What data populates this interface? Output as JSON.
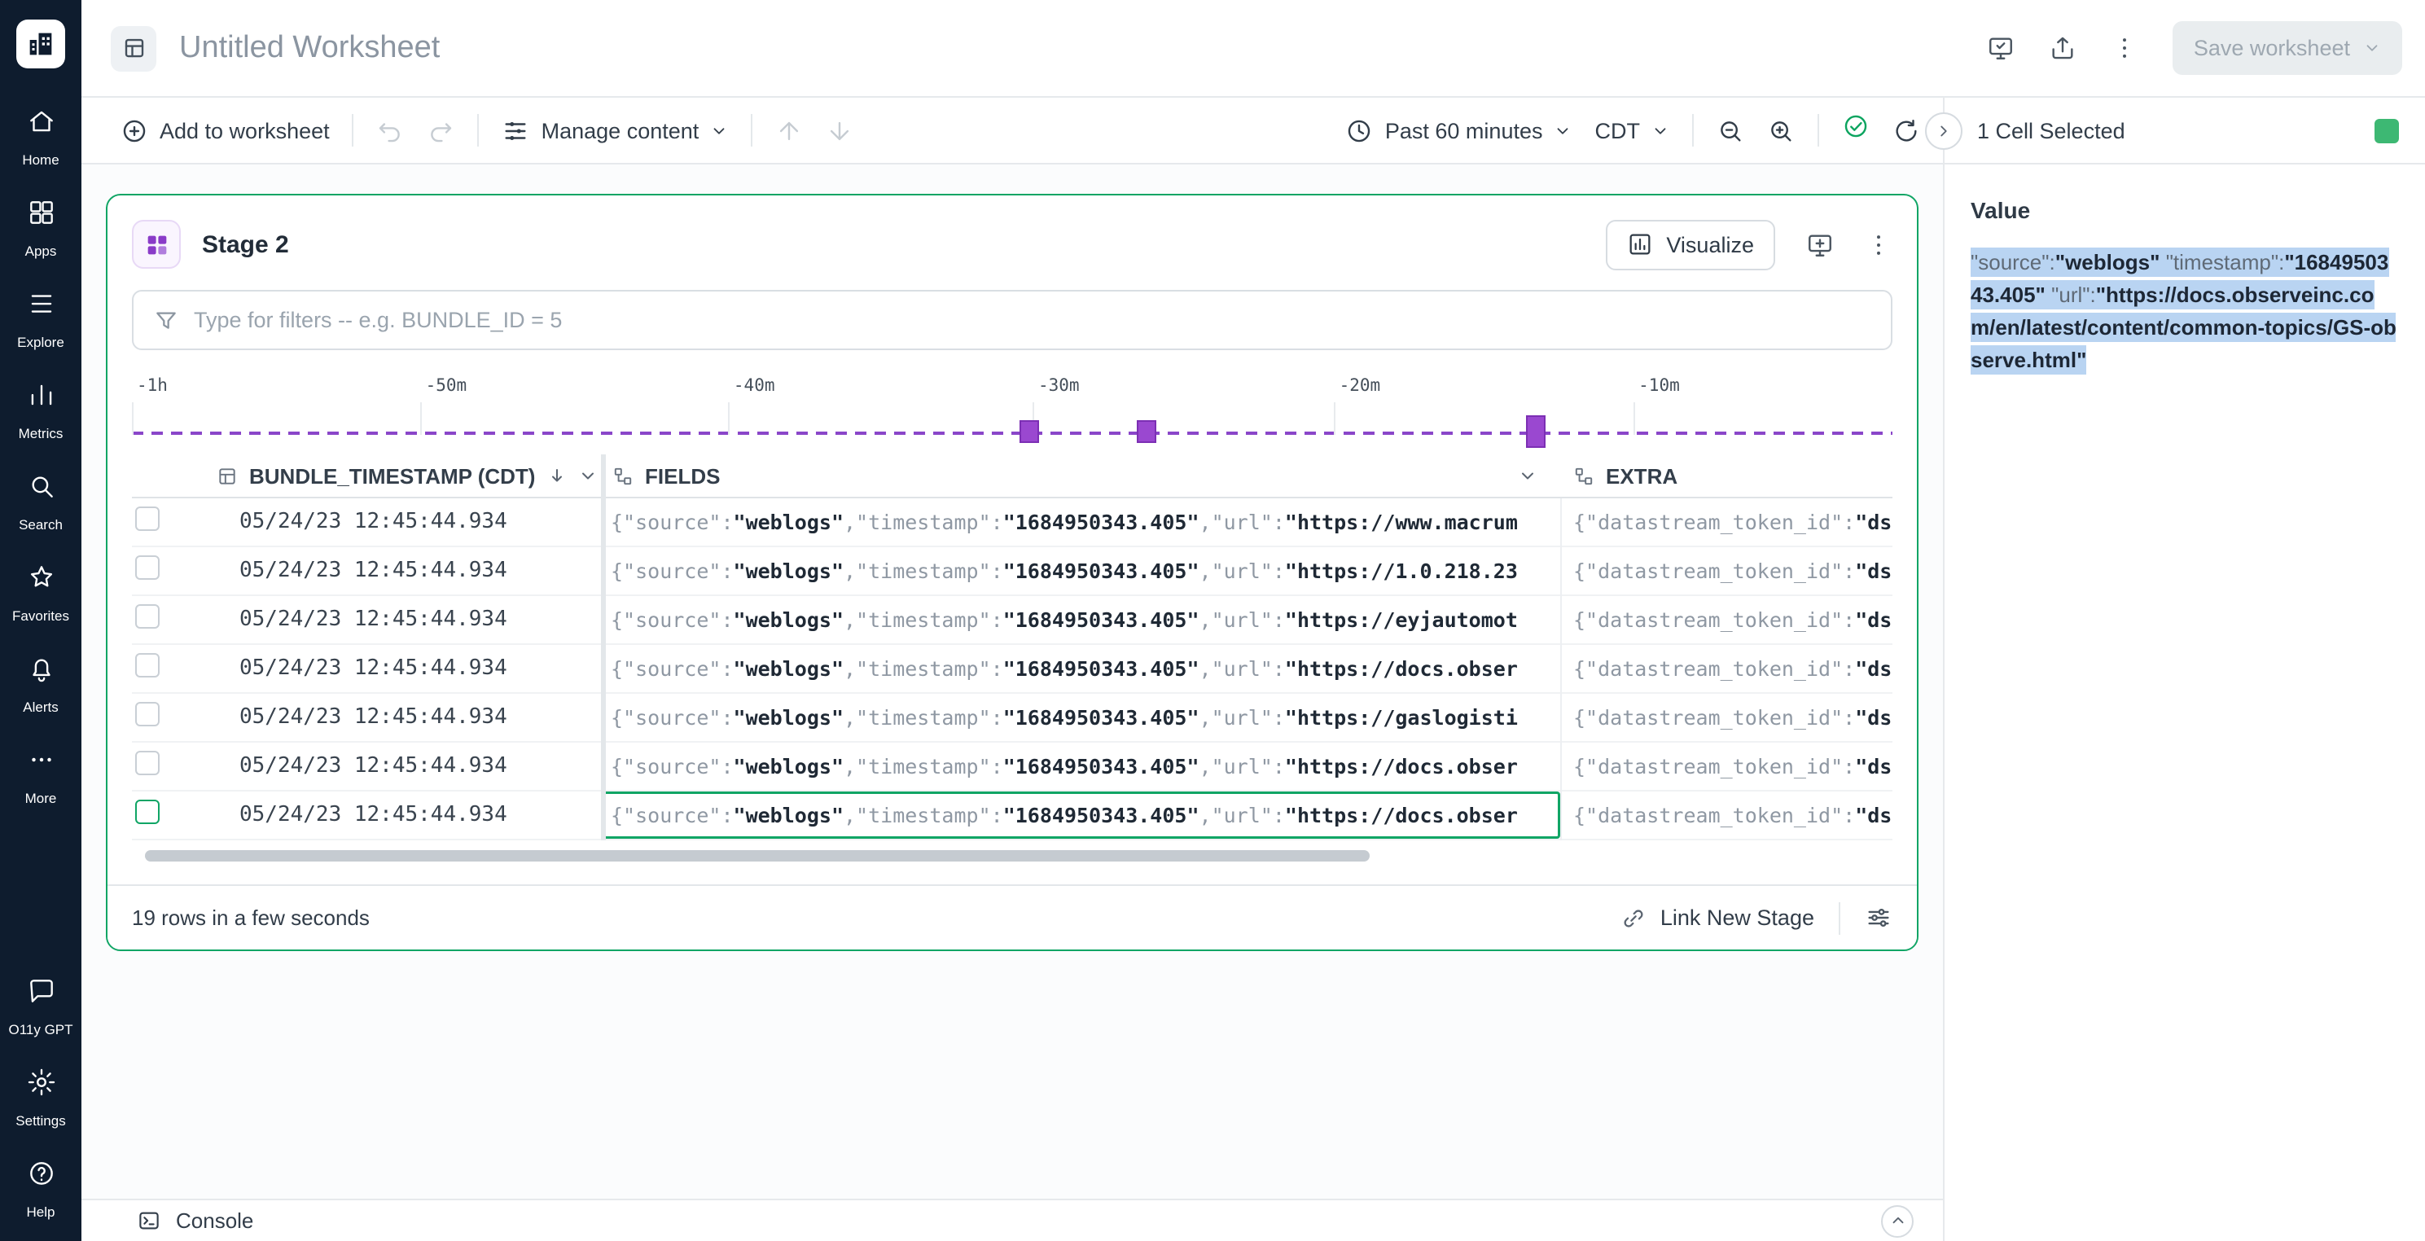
{
  "topbar": {
    "title": "Untitled Worksheet",
    "save_label": "Save worksheet"
  },
  "sidebar": {
    "items": [
      {
        "id": "home",
        "label": "Home"
      },
      {
        "id": "apps",
        "label": "Apps"
      },
      {
        "id": "explore",
        "label": "Explore"
      },
      {
        "id": "metrics",
        "label": "Metrics"
      },
      {
        "id": "search",
        "label": "Search"
      },
      {
        "id": "favorites",
        "label": "Favorites"
      },
      {
        "id": "alerts",
        "label": "Alerts"
      },
      {
        "id": "more",
        "label": "More"
      }
    ],
    "bottom_items": [
      {
        "id": "o11y-gpt",
        "label": "O11y GPT"
      },
      {
        "id": "settings",
        "label": "Settings"
      },
      {
        "id": "help",
        "label": "Help"
      }
    ]
  },
  "toolbar": {
    "add_label": "Add to worksheet",
    "manage_label": "Manage content",
    "time_range": "Past 60 minutes",
    "timezone": "CDT"
  },
  "panel": {
    "header": "1 Cell Selected",
    "value_label": "Value",
    "value_segments": [
      {
        "text": "\"source\":",
        "bold": false
      },
      {
        "text": "\"weblogs\"",
        "bold": true
      },
      {
        "text": " ",
        "bold": false
      },
      {
        "text": "\"timestamp\":",
        "bold": false
      },
      {
        "text": "\"1684950343.405\"",
        "bold": true
      },
      {
        "text": " ",
        "bold": false
      },
      {
        "text": "\"url\":",
        "bold": false
      },
      {
        "text": "\"https://docs.observeinc.com/en/latest/content/common-topics/GS-observe.html\"",
        "bold": true
      }
    ]
  },
  "stage": {
    "title": "Stage 2",
    "visualize_label": "Visualize",
    "filter_placeholder": "Type for filters -- e.g. BUNDLE_ID = 5",
    "status": "19 rows in a few seconds",
    "link_label": "Link New Stage"
  },
  "timeline": {
    "ticks": [
      {
        "label": "-1h",
        "pct": 0
      },
      {
        "label": "-50m",
        "pct": 16.4
      },
      {
        "label": "-40m",
        "pct": 33.9
      },
      {
        "label": "-30m",
        "pct": 51.2
      },
      {
        "label": "-20m",
        "pct": 68.3
      },
      {
        "label": "-10m",
        "pct": 85.3
      }
    ],
    "bars": [
      {
        "pct": 50.4,
        "h": 14
      },
      {
        "pct": 57.1,
        "h": 14
      },
      {
        "pct": 79.2,
        "h": 20
      }
    ]
  },
  "table": {
    "headers": {
      "timestamp": "BUNDLE_TIMESTAMP (CDT)",
      "fields": "FIELDS",
      "extra": "EXTRA"
    },
    "rows": [
      {
        "ts": "05/24/23 12:45:44.934",
        "source": "weblogs",
        "timestamp": "1684950343.405",
        "url": "https://www.macrum",
        "extra_key": "datastream_token_id",
        "extra_val": "ds",
        "selected": false
      },
      {
        "ts": "05/24/23 12:45:44.934",
        "source": "weblogs",
        "timestamp": "1684950343.405",
        "url": "https://1.0.218.23",
        "extra_key": "datastream_token_id",
        "extra_val": "ds",
        "selected": false
      },
      {
        "ts": "05/24/23 12:45:44.934",
        "source": "weblogs",
        "timestamp": "1684950343.405",
        "url": "https://eyjautomot",
        "extra_key": "datastream_token_id",
        "extra_val": "ds",
        "selected": false
      },
      {
        "ts": "05/24/23 12:45:44.934",
        "source": "weblogs",
        "timestamp": "1684950343.405",
        "url": "https://docs.obser",
        "extra_key": "datastream_token_id",
        "extra_val": "ds",
        "selected": false
      },
      {
        "ts": "05/24/23 12:45:44.934",
        "source": "weblogs",
        "timestamp": "1684950343.405",
        "url": "https://gaslogisti",
        "extra_key": "datastream_token_id",
        "extra_val": "ds",
        "selected": false
      },
      {
        "ts": "05/24/23 12:45:44.934",
        "source": "weblogs",
        "timestamp": "1684950343.405",
        "url": "https://docs.obser",
        "extra_key": "datastream_token_id",
        "extra_val": "ds",
        "selected": false
      },
      {
        "ts": "05/24/23 12:45:44.934",
        "source": "weblogs",
        "timestamp": "1684950343.405",
        "url": "https://docs.obser",
        "extra_key": "datastream_token_id",
        "extra_val": "ds",
        "selected": true
      }
    ]
  },
  "console": {
    "label": "Console"
  }
}
